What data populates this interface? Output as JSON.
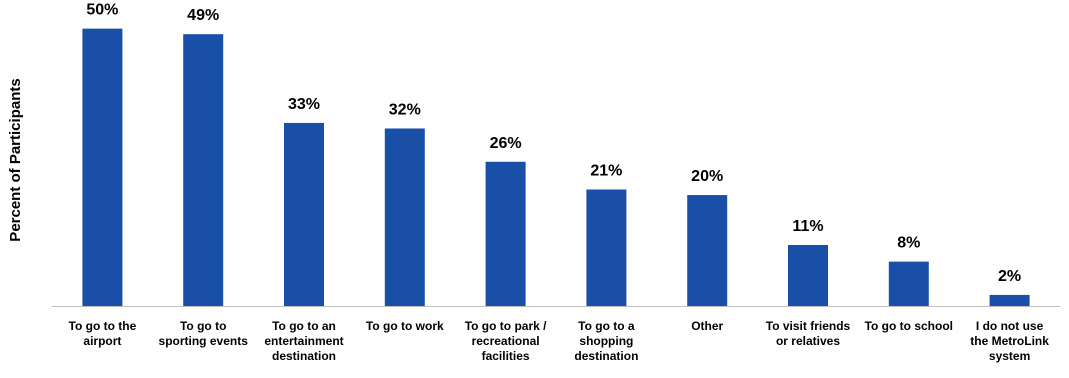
{
  "chart_data": {
    "type": "bar",
    "title": "",
    "xlabel": "",
    "ylabel": "Percent of Participants",
    "ylim": [
      0,
      53
    ],
    "grid": false,
    "legend": "none",
    "bar_color": "#1a4fa8",
    "axis_color": "#bfbfbf",
    "value_suffix": "%",
    "categories": [
      [
        "To go to the",
        "airport"
      ],
      [
        "To go to",
        "sporting events"
      ],
      [
        "To go to an",
        "entertainment",
        "destination"
      ],
      [
        "To go to work"
      ],
      [
        "To go to park /",
        "recreational",
        "facilities"
      ],
      [
        "To go to a",
        "shopping",
        "destination"
      ],
      [
        "Other"
      ],
      [
        "To visit friends",
        "or relatives"
      ],
      [
        "To go to school"
      ],
      [
        "I do not  use",
        "the MetroLink",
        "system"
      ]
    ],
    "values": [
      50,
      49,
      33,
      32,
      26,
      21,
      20,
      11,
      8,
      2
    ]
  }
}
